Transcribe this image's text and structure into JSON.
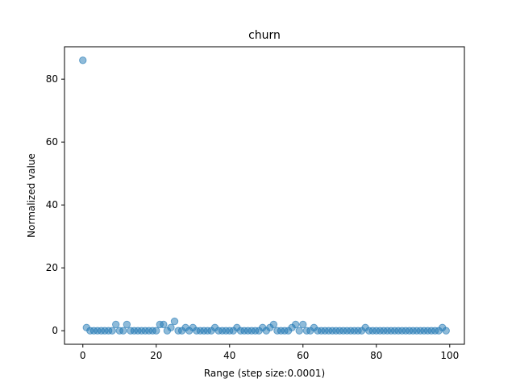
{
  "chart_data": {
    "type": "scatter",
    "title": "churn",
    "xlabel": "Range (step size:0.0001)",
    "ylabel": "Normalized value",
    "xlim": [
      -5,
      104
    ],
    "ylim": [
      -4.3,
      90.3
    ],
    "xticks": [
      0,
      20,
      40,
      60,
      80,
      100
    ],
    "yticks": [
      0,
      20,
      40,
      60,
      80
    ],
    "grid": false,
    "marker_color": "#1f77b4",
    "marker_alpha": 0.5,
    "series": [
      {
        "x": [
          0,
          1,
          2,
          3,
          4,
          5,
          6,
          7,
          8,
          9,
          10,
          11,
          12,
          13,
          14,
          15,
          16,
          17,
          18,
          19,
          20,
          21,
          22,
          23,
          24,
          25,
          26,
          27,
          28,
          29,
          30,
          31,
          32,
          33,
          34,
          35,
          36,
          37,
          38,
          39,
          40,
          41,
          42,
          43,
          44,
          45,
          46,
          47,
          48,
          49,
          50,
          51,
          52,
          53,
          54,
          55,
          56,
          57,
          58,
          59,
          60,
          61,
          62,
          63,
          64,
          65,
          66,
          67,
          68,
          69,
          70,
          71,
          72,
          73,
          74,
          75,
          76,
          77,
          78,
          79,
          80,
          81,
          82,
          83,
          84,
          85,
          86,
          87,
          88,
          89,
          90,
          91,
          92,
          93,
          94,
          95,
          96,
          97,
          98,
          99
        ],
        "y": [
          86,
          1,
          0,
          0,
          0,
          0,
          0,
          0,
          0,
          2,
          0,
          0,
          2,
          0,
          0,
          0,
          0,
          0,
          0,
          0,
          0,
          2,
          2,
          0,
          1,
          3,
          0,
          0,
          1,
          0,
          1,
          0,
          0,
          0,
          0,
          0,
          1,
          0,
          0,
          0,
          0,
          0,
          1,
          0,
          0,
          0,
          0,
          0,
          0,
          1,
          0,
          1,
          2,
          0,
          0,
          0,
          0,
          1,
          2,
          0,
          2,
          0,
          0,
          1,
          0,
          0,
          0,
          0,
          0,
          0,
          0,
          0,
          0,
          0,
          0,
          0,
          0,
          1,
          0,
          0,
          0,
          0,
          0,
          0,
          0,
          0,
          0,
          0,
          0,
          0,
          0,
          0,
          0,
          0,
          0,
          0,
          0,
          0,
          1,
          0
        ]
      }
    ]
  }
}
